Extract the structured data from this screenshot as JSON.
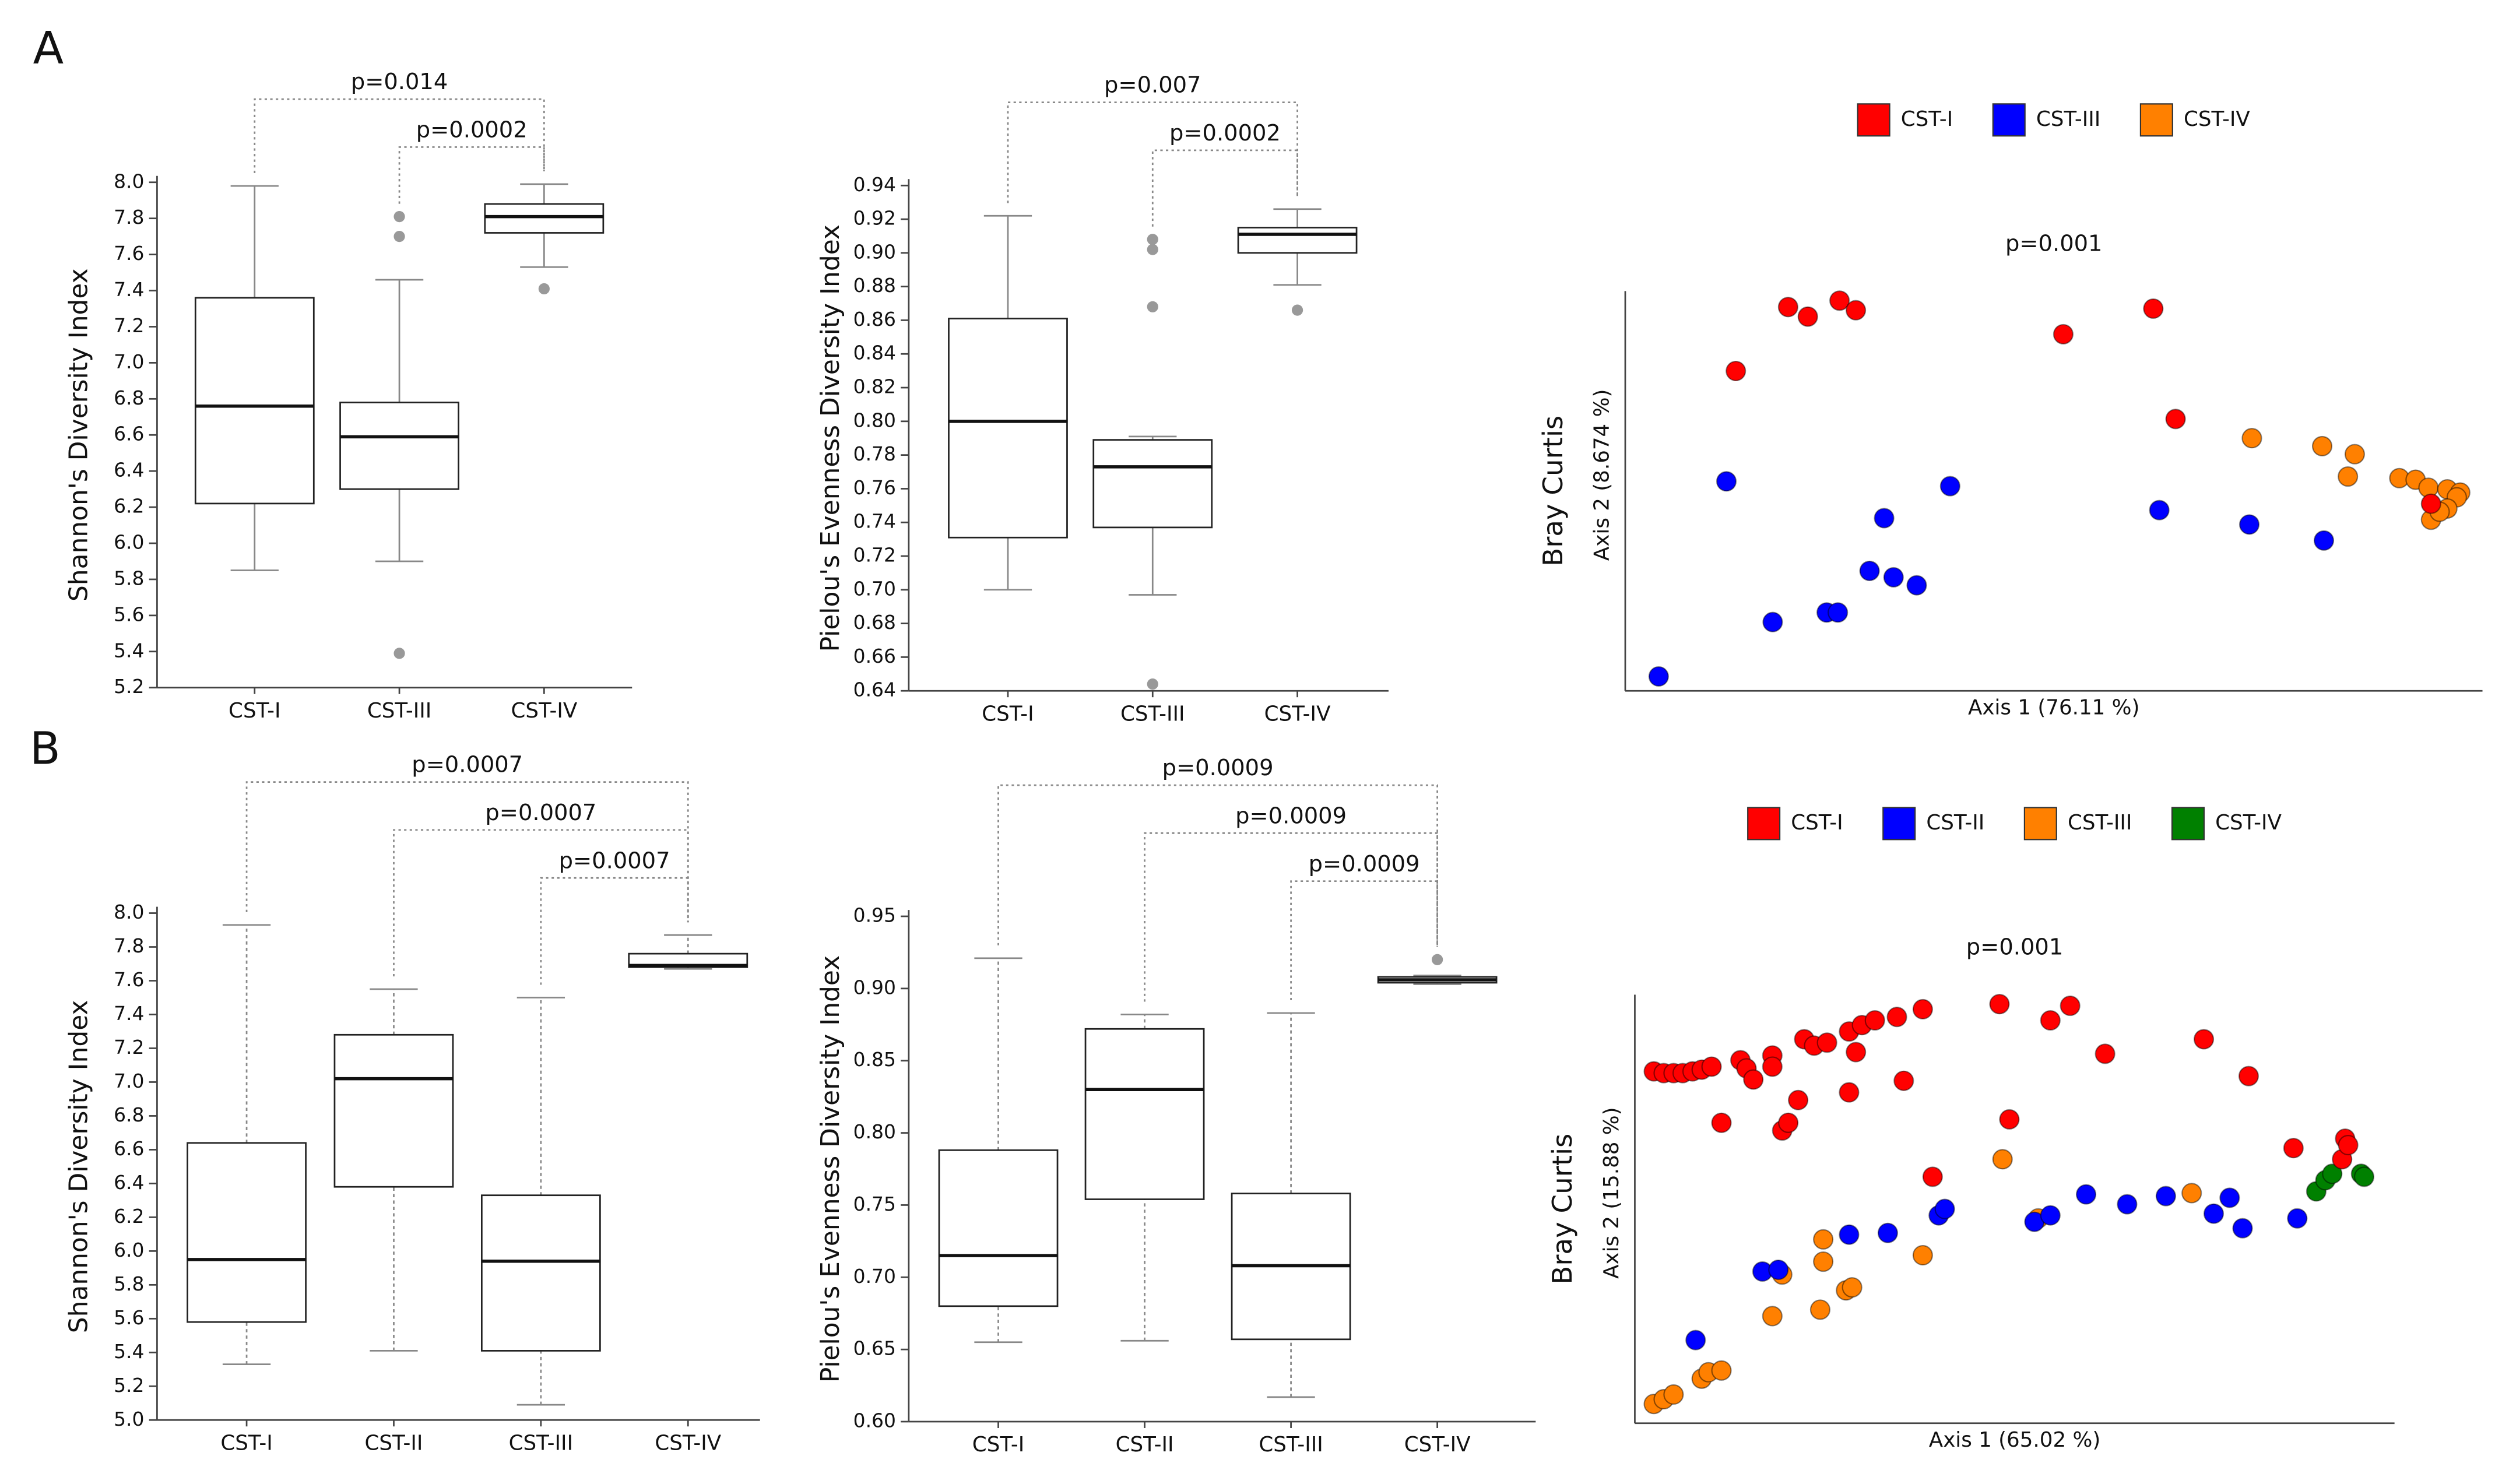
{
  "panels": [
    "A",
    "B"
  ],
  "chart_data": [
    {
      "type": "box",
      "ylabel": "Shannon's Diversity Index",
      "whisker_style": "solid",
      "categories": [
        "CST-I",
        "CST-III",
        "CST-IV"
      ],
      "boxes": [
        {
          "whislo": 5.85,
          "q1": 6.22,
          "med": 6.76,
          "q3": 7.36,
          "whishi": 7.98,
          "fliers": []
        },
        {
          "whislo": 5.9,
          "q1": 6.3,
          "med": 6.59,
          "q3": 6.78,
          "whishi": 7.46,
          "fliers": [
            5.39,
            7.7,
            7.81
          ]
        },
        {
          "whislo": 7.53,
          "q1": 7.72,
          "med": 7.81,
          "q3": 7.88,
          "whishi": 7.99,
          "fliers": [
            7.41
          ]
        }
      ],
      "ylim": [
        5.2,
        8.0
      ],
      "yticks": [
        5.2,
        5.4,
        5.6,
        5.8,
        {
          "value": 6,
          "label": "6.0"
        },
        6.2,
        6.4,
        6.6,
        6.8,
        {
          "value": 7,
          "label": "7.0"
        },
        7.2,
        7.4,
        7.6,
        7.8,
        {
          "value": 8,
          "label": "8.0"
        }
      ],
      "brackets": [
        {
          "label": "p=0.014",
          "groups": [
            0,
            2
          ]
        },
        {
          "label": "p=0.0002",
          "groups": [
            1,
            2
          ]
        }
      ]
    },
    {
      "type": "box",
      "ylabel": "Pielou's Evenness Diversity Index",
      "whisker_style": "solid",
      "categories": [
        "CST-I",
        "CST-III",
        "CST-IV"
      ],
      "boxes": [
        {
          "whislo": 0.7,
          "q1": 0.731,
          "med": 0.8,
          "q3": 0.861,
          "whishi": 0.922,
          "fliers": []
        },
        {
          "whislo": 0.697,
          "q1": 0.737,
          "med": 0.773,
          "q3": 0.789,
          "whishi": 0.791,
          "fliers": [
            0.644,
            0.868,
            0.902,
            0.908
          ]
        },
        {
          "whislo": 0.881,
          "q1": 0.9,
          "med": 0.911,
          "q3": 0.915,
          "whishi": 0.926,
          "fliers": [
            0.866
          ]
        }
      ],
      "ylim": [
        0.64,
        0.94
      ],
      "yticks": [
        0.64,
        0.66,
        0.68,
        {
          "value": 0.7,
          "label": "0.70"
        },
        0.72,
        0.74,
        0.76,
        0.78,
        {
          "value": 0.8,
          "label": "0.80"
        },
        0.82,
        0.84,
        0.86,
        0.88,
        {
          "value": 0.9,
          "label": "0.90"
        },
        0.92,
        0.94
      ],
      "brackets": [
        {
          "label": "p=0.007",
          "groups": [
            0,
            2
          ]
        },
        {
          "label": "p=0.0002",
          "groups": [
            1,
            2
          ]
        }
      ]
    },
    {
      "type": "scatter",
      "title": "p=0.001",
      "ylabel": "Bray Curtis",
      "ylabel2": "Axis 2 (8.674 %)",
      "xlabel": "Axis 1 (76.11 %)",
      "xlim": [
        0,
        1
      ],
      "ylim": [
        0,
        1
      ],
      "series": [
        {
          "name": "CST-I",
          "color": "#ff0000",
          "x": [
            0.129,
            0.19,
            0.213,
            0.25,
            0.269,
            0.511,
            0.616,
            0.642,
            0.94
          ],
          "values": [
            0.8,
            0.96,
            0.936,
            0.976,
            0.952,
            0.892,
            0.956,
            0.68,
            0.468
          ]
        },
        {
          "name": "CST-III",
          "color": "#0000ff",
          "x": [
            0.039,
            0.118,
            0.172,
            0.235,
            0.248,
            0.285,
            0.302,
            0.313,
            0.34,
            0.379,
            0.623,
            0.728,
            0.815
          ],
          "values": [
            0.036,
            0.524,
            0.172,
            0.196,
            0.196,
            0.3,
            0.432,
            0.284,
            0.264,
            0.512,
            0.452,
            0.416,
            0.376
          ]
        },
        {
          "name": "CST-IV",
          "color": "#ff8000",
          "x": [
            0.731,
            0.813,
            0.851,
            0.843,
            0.903,
            0.922,
            0.937,
            0.959,
            0.974,
            0.97,
            0.959,
            0.94,
            0.95
          ],
          "values": [
            0.632,
            0.612,
            0.592,
            0.536,
            0.532,
            0.528,
            0.508,
            0.504,
            0.496,
            0.484,
            0.456,
            0.428,
            0.448
          ]
        }
      ]
    },
    {
      "type": "box",
      "ylabel": "Shannon's Diversity Index",
      "whisker_style": "dotted",
      "categories": [
        "CST-I",
        "CST-II",
        "CST-III",
        "CST-IV"
      ],
      "boxes": [
        {
          "whislo": 5.33,
          "q1": 5.58,
          "med": 5.95,
          "q3": 6.64,
          "whishi": 7.93,
          "fliers": []
        },
        {
          "whislo": 5.41,
          "q1": 6.38,
          "med": 7.02,
          "q3": 7.28,
          "whishi": 7.55,
          "fliers": []
        },
        {
          "whislo": 5.09,
          "q1": 5.41,
          "med": 5.94,
          "q3": 6.33,
          "whishi": 7.5,
          "fliers": []
        },
        {
          "whislo": 7.67,
          "q1": 7.68,
          "med": 7.69,
          "q3": 7.76,
          "whishi": 7.87,
          "fliers": []
        }
      ],
      "ylim": [
        5.0,
        8.0
      ],
      "yticks": [
        {
          "value": 5,
          "label": "5.0"
        },
        5.2,
        5.4,
        5.6,
        5.8,
        {
          "value": 6,
          "label": "6.0"
        },
        6.2,
        6.4,
        6.6,
        6.8,
        {
          "value": 7,
          "label": "7.0"
        },
        7.2,
        7.4,
        7.6,
        7.8,
        {
          "value": 8,
          "label": "8.0"
        }
      ],
      "brackets": [
        {
          "label": "p=0.0007",
          "groups": [
            0,
            3
          ]
        },
        {
          "label": "p=0.0007",
          "groups": [
            1,
            3
          ]
        },
        {
          "label": "p=0.0007",
          "groups": [
            2,
            3
          ]
        }
      ]
    },
    {
      "type": "box",
      "ylabel": "Pielou's Evenness Diversity Index",
      "whisker_style": "dotted",
      "categories": [
        "CST-I",
        "CST-II",
        "CST-III",
        "CST-IV"
      ],
      "boxes": [
        {
          "whislo": 0.655,
          "q1": 0.68,
          "med": 0.715,
          "q3": 0.788,
          "whishi": 0.921,
          "fliers": []
        },
        {
          "whislo": 0.656,
          "q1": 0.754,
          "med": 0.83,
          "q3": 0.872,
          "whishi": 0.882,
          "fliers": []
        },
        {
          "whislo": 0.617,
          "q1": 0.657,
          "med": 0.708,
          "q3": 0.758,
          "whishi": 0.883,
          "fliers": []
        },
        {
          "whislo": 0.903,
          "q1": 0.904,
          "med": 0.906,
          "q3": 0.908,
          "whishi": 0.909,
          "fliers": [
            0.92
          ]
        }
      ],
      "ylim": [
        0.6,
        0.95
      ],
      "yticks": [
        {
          "value": 0.6,
          "label": "0.60"
        },
        0.65,
        {
          "value": 0.7,
          "label": "0.70"
        },
        0.75,
        {
          "value": 0.8,
          "label": "0.80"
        },
        0.85,
        {
          "value": 0.9,
          "label": "0.90"
        },
        0.95
      ],
      "brackets": [
        {
          "label": "p=0.0009",
          "groups": [
            0,
            3
          ]
        },
        {
          "label": "p=0.0009",
          "groups": [
            1,
            3
          ]
        },
        {
          "label": "p=0.0009",
          "groups": [
            2,
            3
          ]
        }
      ]
    },
    {
      "type": "scatter",
      "title": "p=0.001",
      "ylabel": "Bray Curtis",
      "ylabel2": "Axis 2 (15.88 %)",
      "xlabel": "Axis 1 (65.02 %)",
      "xlim": [
        0,
        1
      ],
      "ylim": [
        0,
        1
      ],
      "series": [
        {
          "name": "CST-I",
          "color": "#ff0000",
          "x": [
            0.025,
            0.038,
            0.051,
            0.063,
            0.076,
            0.088,
            0.101,
            0.114,
            0.139,
            0.147,
            0.156,
            0.181,
            0.181,
            0.194,
            0.202,
            0.215,
            0.223,
            0.236,
            0.253,
            0.282,
            0.282,
            0.291,
            0.299,
            0.316,
            0.345,
            0.354,
            0.379,
            0.392,
            0.48,
            0.493,
            0.547,
            0.573,
            0.619,
            0.749,
            0.808,
            0.867,
            0.931,
            0.935,
            0.939
          ],
          "values": [
            0.821,
            0.817,
            0.817,
            0.817,
            0.821,
            0.825,
            0.832,
            0.701,
            0.847,
            0.828,
            0.802,
            0.858,
            0.832,
            0.683,
            0.701,
            0.754,
            0.896,
            0.881,
            0.888,
            0.772,
            0.914,
            0.866,
            0.929,
            0.94,
            0.948,
            0.799,
            0.966,
            0.575,
            0.978,
            0.709,
            0.94,
            0.974,
            0.862,
            0.896,
            0.81,
            0.642,
            0.616,
            0.664,
            0.649
          ]
        },
        {
          "name": "CST-II",
          "color": "#0000ff",
          "x": [
            0.08,
            0.168,
            0.189,
            0.282,
            0.333,
            0.4,
            0.408,
            0.526,
            0.547,
            0.594,
            0.648,
            0.699,
            0.762,
            0.783,
            0.8,
            0.872
          ],
          "values": [
            0.194,
            0.354,
            0.358,
            0.44,
            0.444,
            0.485,
            0.5,
            0.47,
            0.485,
            0.534,
            0.511,
            0.53,
            0.489,
            0.526,
            0.455,
            0.478
          ]
        },
        {
          "name": "CST-III",
          "color": "#ff8000",
          "x": [
            0.025,
            0.038,
            0.051,
            0.088,
            0.097,
            0.114,
            0.181,
            0.194,
            0.248,
            0.248,
            0.244,
            0.278,
            0.286,
            0.379,
            0.484,
            0.531,
            0.733
          ],
          "values": [
            0.045,
            0.056,
            0.067,
            0.104,
            0.119,
            0.123,
            0.25,
            0.347,
            0.429,
            0.377,
            0.265,
            0.31,
            0.317,
            0.392,
            0.616,
            0.478,
            0.537
          ]
        },
        {
          "name": "CST-IV",
          "color": "#008000",
          "x": [
            0.897,
            0.909,
            0.918,
            0.956,
            0.96
          ],
          "values": [
            0.541,
            0.567,
            0.582,
            0.582,
            0.575
          ]
        }
      ]
    }
  ]
}
